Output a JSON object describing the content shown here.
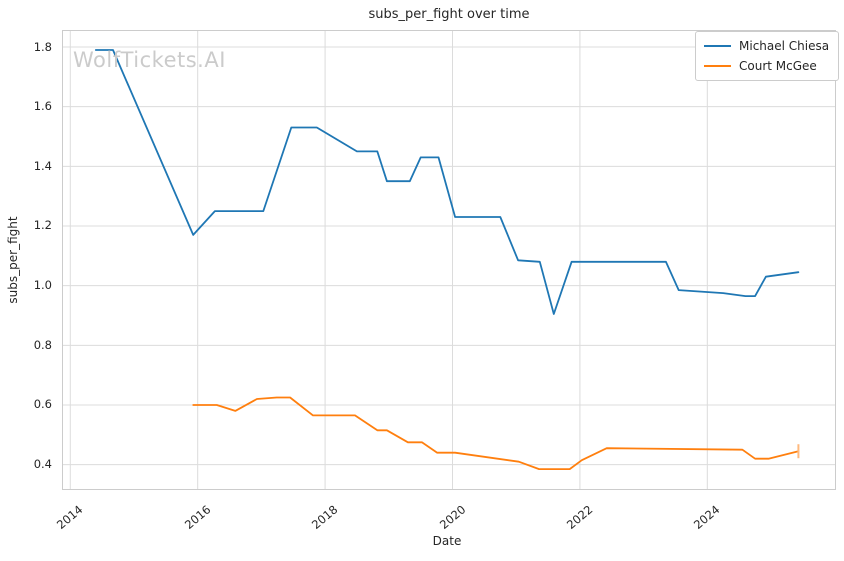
{
  "watermark": {
    "text": "WolfTickets.AI",
    "color": "#cbcbcb"
  },
  "colors": {
    "grid": "#dcdcdc",
    "spine": "#cccccc",
    "text": "#262626",
    "background": "#ffffff"
  },
  "legend": {
    "position": "upper right"
  },
  "chart_data": {
    "type": "line",
    "title": "subs_per_fight over time",
    "xlabel": "Date",
    "ylabel": "subs_per_fight",
    "xlim": [
      2013.87,
      2026.02
    ],
    "ylim": [
      0.315,
      1.857
    ],
    "xticks": [
      2014,
      2016,
      2018,
      2020,
      2022,
      2024
    ],
    "yticks": [
      0.4,
      0.6,
      0.8,
      1.0,
      1.2,
      1.4,
      1.6,
      1.8
    ],
    "grid": true,
    "legend_position": "upper right",
    "series": [
      {
        "name": "Michael Chiesa",
        "color": "#1f77b4",
        "points": [
          [
            2014.4,
            1.79
          ],
          [
            2014.67,
            1.79
          ],
          [
            2015.93,
            1.17
          ],
          [
            2016.27,
            1.25
          ],
          [
            2017.03,
            1.25
          ],
          [
            2017.47,
            1.53
          ],
          [
            2017.87,
            1.53
          ],
          [
            2018.5,
            1.45
          ],
          [
            2018.82,
            1.45
          ],
          [
            2018.97,
            1.35
          ],
          [
            2019.33,
            1.35
          ],
          [
            2019.5,
            1.43
          ],
          [
            2019.78,
            1.43
          ],
          [
            2020.04,
            1.23
          ],
          [
            2020.75,
            1.23
          ],
          [
            2021.03,
            1.085
          ],
          [
            2021.37,
            1.08
          ],
          [
            2021.59,
            0.905
          ],
          [
            2021.87,
            1.08
          ],
          [
            2023.35,
            1.08
          ],
          [
            2023.55,
            0.985
          ],
          [
            2024.25,
            0.975
          ],
          [
            2024.6,
            0.965
          ],
          [
            2024.75,
            0.965
          ],
          [
            2024.92,
            1.03
          ],
          [
            2025.43,
            1.045
          ]
        ],
        "end_marker": false
      },
      {
        "name": "Court McGee",
        "color": "#ff7f0e",
        "points": [
          [
            2015.93,
            0.6
          ],
          [
            2016.3,
            0.6
          ],
          [
            2016.59,
            0.58
          ],
          [
            2016.93,
            0.62
          ],
          [
            2017.24,
            0.625
          ],
          [
            2017.45,
            0.625
          ],
          [
            2017.81,
            0.565
          ],
          [
            2018.47,
            0.565
          ],
          [
            2018.82,
            0.515
          ],
          [
            2018.97,
            0.515
          ],
          [
            2019.3,
            0.475
          ],
          [
            2019.52,
            0.475
          ],
          [
            2019.76,
            0.44
          ],
          [
            2020.04,
            0.44
          ],
          [
            2021.04,
            0.41
          ],
          [
            2021.36,
            0.385
          ],
          [
            2021.84,
            0.385
          ],
          [
            2022.03,
            0.415
          ],
          [
            2022.42,
            0.455
          ],
          [
            2024.55,
            0.45
          ],
          [
            2024.75,
            0.42
          ],
          [
            2024.96,
            0.42
          ],
          [
            2025.43,
            0.445
          ]
        ],
        "end_marker": true,
        "end_marker_color": "#ffb97d"
      }
    ]
  }
}
